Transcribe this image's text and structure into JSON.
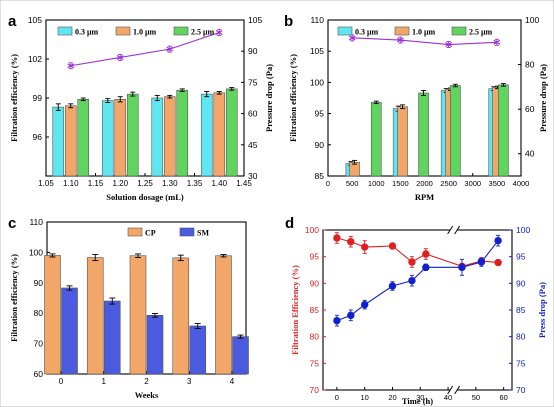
{
  "colors": {
    "cyan": "#5fe6f0",
    "orange": "#f2a668",
    "green": "#5fd45f",
    "purple": "#9b30d9",
    "blue_bar": "#4a5be0",
    "red_line": "#e02020",
    "blue_line": "#1020d0"
  },
  "chart_data": [
    {
      "panel": "a",
      "type": "bar",
      "categories": [
        "1.10",
        "1.20",
        "1.30",
        "1.40"
      ],
      "x_ticks": [
        "1.05",
        "1.10",
        "1.15",
        "1.20",
        "1.25",
        "1.30",
        "1.35",
        "1.40",
        "1.45"
      ],
      "xlabel": "Solution dosage (mL)",
      "ylabel": "Filtration efficiency (%)",
      "y2label": "Pressure drop (Pa)",
      "ylim": [
        93,
        105
      ],
      "y_ticks": [
        96,
        99,
        102,
        105
      ],
      "y2lim": [
        30,
        105
      ],
      "y2_ticks": [
        30,
        45,
        60,
        75,
        90,
        105
      ],
      "legend": [
        "0.3 μm",
        "1.0 μm",
        "2.5 μm"
      ],
      "series": [
        {
          "name": "0.3 μm",
          "values": [
            98.3,
            98.8,
            99.0,
            99.3
          ],
          "errors": [
            0.25,
            0.15,
            0.2,
            0.2
          ]
        },
        {
          "name": "1.0 μm",
          "values": [
            98.4,
            98.9,
            99.1,
            99.4
          ],
          "errors": [
            0.15,
            0.2,
            0.1,
            0.1
          ]
        },
        {
          "name": "2.5 μm",
          "values": [
            98.9,
            99.3,
            99.6,
            99.7
          ],
          "errors": [
            0.1,
            0.15,
            0.1,
            0.1
          ]
        }
      ],
      "line": {
        "x": [
          1.1,
          1.2,
          1.3,
          1.4
        ],
        "y": [
          83,
          87,
          91,
          99
        ]
      }
    },
    {
      "panel": "b",
      "type": "bar",
      "categories": [
        "500",
        "1000",
        "1500",
        "2500",
        "3500"
      ],
      "x_ticks": [
        "0",
        "500",
        "1000",
        "1500",
        "2000",
        "2500",
        "3000",
        "3500",
        "4000"
      ],
      "xlabel": "RPM",
      "ylabel": "Filtration efficiency (%)",
      "y2label": "Pressure drop (Pa)",
      "ylim": [
        85,
        110
      ],
      "y_ticks": [
        85,
        90,
        95,
        100,
        105,
        110
      ],
      "y2lim": [
        30,
        100
      ],
      "y2_ticks": [
        40,
        60,
        80,
        100
      ],
      "legend": [
        "0.3 μm",
        "1.0 μm",
        "2.5 μm"
      ],
      "series": [
        {
          "name": "0.3 μm",
          "values": [
            87.0,
            null,
            95.8,
            98.7,
            99.0
          ],
          "errors": [
            0.3,
            null,
            0.4,
            0.3,
            0.3
          ]
        },
        {
          "name": "1.0 μm",
          "values": [
            87.2,
            null,
            96.1,
            98.9,
            99.2
          ],
          "errors": [
            0.3,
            null,
            0.3,
            0.2,
            0.2
          ]
        },
        {
          "name": "2.5 μm",
          "values": [
            96.8,
            98.3,
            null,
            99.5,
            99.6
          ],
          "errors": [
            0.2,
            0.4,
            null,
            0.2,
            0.2
          ]
        }
      ],
      "bar_x": [
        [
          475,
          null,
          1455,
          2450,
          3435
        ],
        [
          550,
          null,
          1545,
          2540,
          3515
        ],
        [
          1000,
          1980,
          null,
          2640,
          3635
        ]
      ],
      "line": {
        "x": [
          500,
          1500,
          2500,
          3500
        ],
        "y": [
          92,
          91,
          89,
          90
        ]
      }
    },
    {
      "panel": "c",
      "type": "bar",
      "categories": [
        "0",
        "1",
        "2",
        "3",
        "4"
      ],
      "xlabel": "Weeks",
      "ylabel": "Filtration efficiency (%)",
      "ylim": [
        60,
        110
      ],
      "y_ticks": [
        60,
        70,
        80,
        90,
        100,
        110
      ],
      "legend": [
        "CP",
        "SM"
      ],
      "series": [
        {
          "name": "CP",
          "values": [
            99.0,
            98.3,
            98.9,
            98.2,
            98.9
          ],
          "errors": [
            0.5,
            1.0,
            0.6,
            0.9,
            0.4
          ]
        },
        {
          "name": "SM",
          "values": [
            88.3,
            84.0,
            79.3,
            75.8,
            72.3
          ],
          "errors": [
            0.7,
            1.0,
            0.6,
            0.8,
            0.5
          ]
        }
      ]
    },
    {
      "panel": "d",
      "type": "line",
      "xlabel": "Time (h)",
      "ylabel": "Filtration Efficiency (%)",
      "y2label": "Press drop (Pa)",
      "x_ticks": [
        "0",
        "10",
        "20",
        "30",
        "40",
        "50",
        "60"
      ],
      "ylim": [
        70,
        100
      ],
      "y_ticks": [
        70,
        75,
        80,
        85,
        90,
        95,
        100
      ],
      "y2lim": [
        70,
        100
      ],
      "y2_ticks": [
        70,
        75,
        80,
        85,
        90,
        95,
        100
      ],
      "series": [
        {
          "name": "Filtration Efficiency",
          "x": [
            0,
            5,
            10,
            20,
            27,
            32,
            45,
            52,
            58
          ],
          "y": [
            98.5,
            97.8,
            96.8,
            97.0,
            94.0,
            95.5,
            93.2,
            94.2,
            93.9
          ],
          "errors": [
            1.0,
            1.0,
            1.2,
            0.5,
            1.0,
            1.0,
            0.5,
            0.5,
            0.5
          ]
        },
        {
          "name": "Press drop",
          "x": [
            0,
            5,
            10,
            20,
            27,
            32,
            45,
            52,
            58
          ],
          "y": [
            83.0,
            84.0,
            86.0,
            89.5,
            90.5,
            93.0,
            93.0,
            94.0,
            98.0
          ],
          "errors": [
            1.0,
            1.0,
            0.8,
            0.8,
            1.0,
            0.6,
            1.5,
            0.8,
            1.0
          ]
        }
      ]
    }
  ]
}
